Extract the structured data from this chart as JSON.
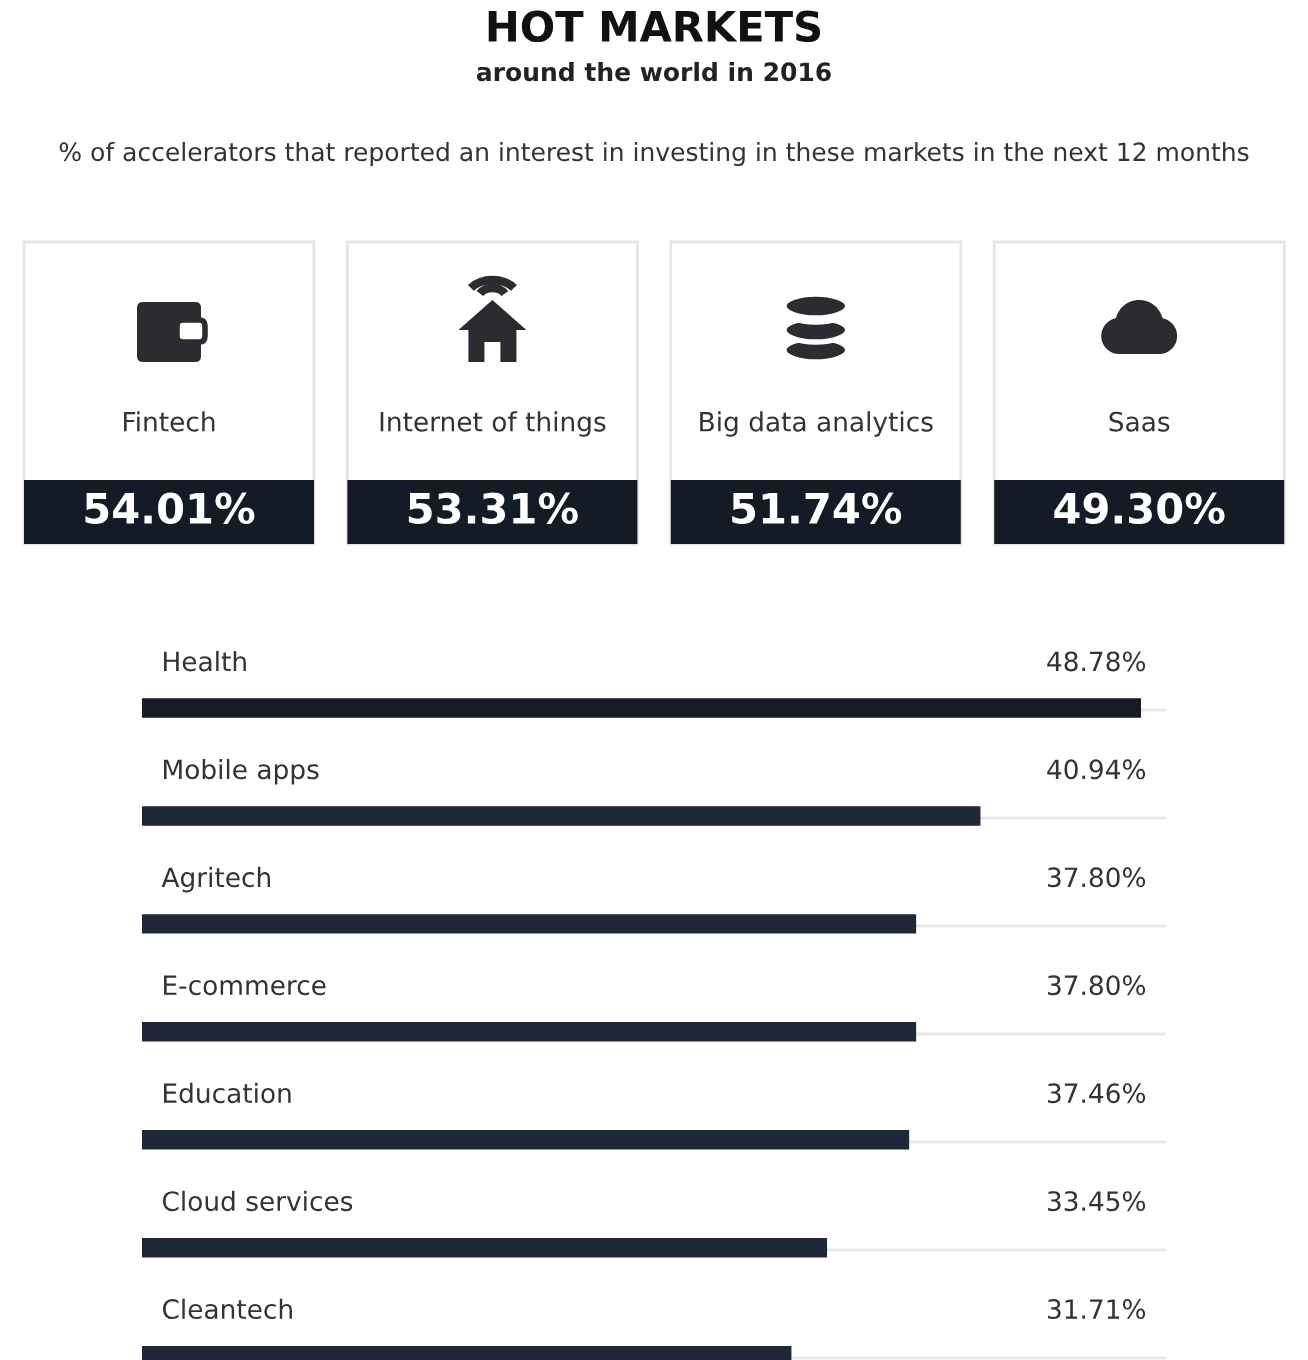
{
  "chart_data": [
    {
      "type": "other",
      "title": "HOT MARKETS",
      "subtitle": "around the world in 2016",
      "annotations": [
        "% of accelerators that reported an interest in investing in these markets in the next 12 months"
      ],
      "categories": [
        "Fintech",
        "Internet of things",
        "Big data analytics",
        "Saas"
      ],
      "values": [
        54.01,
        53.31,
        51.74,
        49.3
      ],
      "value_labels": [
        "54.01%",
        "53.31%",
        "51.74%",
        "49.30%"
      ],
      "color": "#151b26"
    },
    {
      "type": "bar",
      "orientation": "horizontal",
      "categories": [
        "Health",
        "Mobile apps",
        "Agritech",
        "E-commerce",
        "Education",
        "Cloud services",
        "Cleantech"
      ],
      "values": [
        48.78,
        40.94,
        37.8,
        37.8,
        37.46,
        33.45,
        31.71
      ],
      "value_labels": [
        "48.78%",
        "40.94%",
        "37.80%",
        "37.80%",
        "37.46%",
        "33.45%",
        "31.71%"
      ],
      "colors": [
        "#171b26",
        "#1e2838",
        "#1e2838",
        "#1e2838",
        "#1e2838",
        "#1e2838",
        "#1e2838"
      ],
      "xlim": [
        0,
        50
      ]
    }
  ]
}
